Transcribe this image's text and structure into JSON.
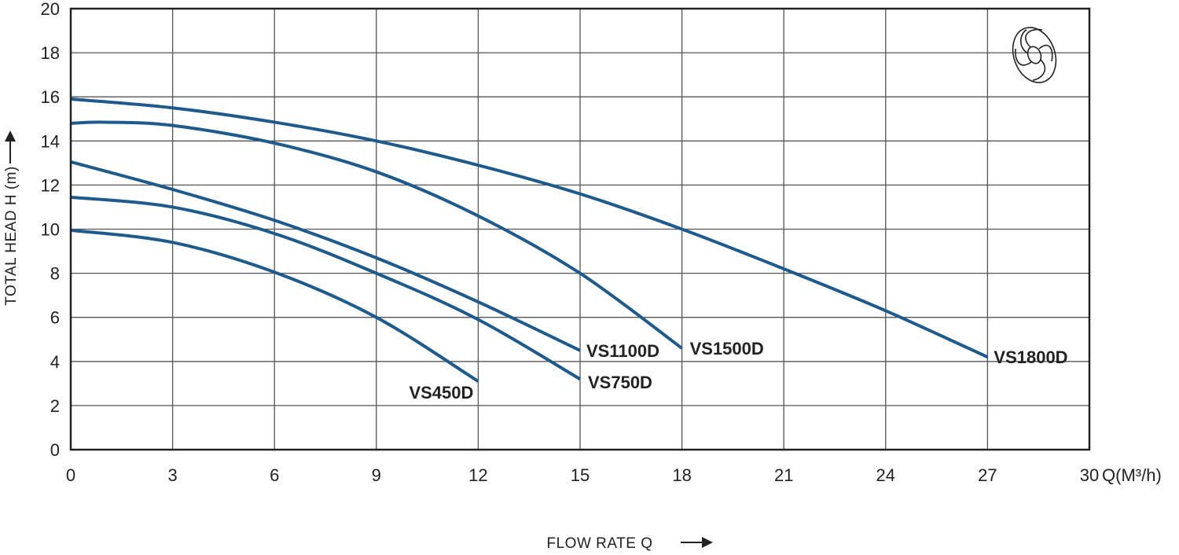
{
  "chart_data": {
    "type": "line",
    "title": "",
    "xlabel": "FLOW RATE Q",
    "ylabel": "TOTAL HEAD H (m)",
    "x_unit_label": "Q(M³/h)",
    "xlim": [
      0,
      30
    ],
    "ylim": [
      0,
      20
    ],
    "xticks": [
      "0",
      "3",
      "6",
      "9",
      "12",
      "15",
      "18",
      "21",
      "24",
      "27",
      "30"
    ],
    "yticks": [
      "0",
      "2",
      "4",
      "6",
      "8",
      "10",
      "12",
      "14",
      "16",
      "18",
      "20"
    ],
    "grid": true,
    "line_color": "#1f5a8c",
    "series": [
      {
        "name": "VS1800D",
        "x": [
          0,
          3,
          6,
          9,
          12,
          15,
          18,
          21,
          24,
          27
        ],
        "y": [
          15.9,
          15.5,
          14.85,
          14.0,
          12.9,
          11.6,
          10.0,
          8.2,
          6.3,
          4.2
        ]
      },
      {
        "name": "VS1500D",
        "x": [
          0,
          1,
          3,
          6,
          9,
          12,
          15,
          18
        ],
        "y": [
          14.8,
          14.85,
          14.7,
          13.9,
          12.6,
          10.6,
          8.0,
          4.6
        ]
      },
      {
        "name": "VS1100D",
        "x": [
          0,
          3,
          6,
          9,
          12,
          15
        ],
        "y": [
          13.05,
          11.8,
          10.4,
          8.7,
          6.7,
          4.5
        ]
      },
      {
        "name": "VS750D",
        "x": [
          0,
          3,
          6,
          9,
          12,
          15
        ],
        "y": [
          11.45,
          11.0,
          9.8,
          8.0,
          5.9,
          3.2
        ]
      },
      {
        "name": "VS450D",
        "x": [
          0,
          3,
          6,
          9,
          12
        ],
        "y": [
          9.95,
          9.4,
          8.05,
          6.0,
          3.1
        ]
      }
    ]
  }
}
